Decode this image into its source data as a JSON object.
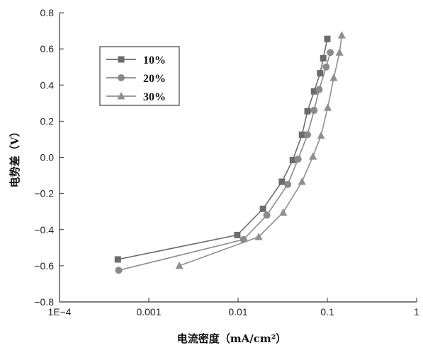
{
  "chart_data": {
    "type": "line",
    "xlabel": "电流密度（mA/cm²）",
    "ylabel": "电势差（V）",
    "x_scale": "log",
    "xlim": [
      0.0001,
      1
    ],
    "ylim": [
      -0.8,
      0.8
    ],
    "x_ticks": [
      {
        "value": 0.0001,
        "label": "1E−4"
      },
      {
        "value": 0.001,
        "label": "0.001"
      },
      {
        "value": 0.01,
        "label": "0.01"
      },
      {
        "value": 0.1,
        "label": "0.1"
      },
      {
        "value": 1,
        "label": "1"
      }
    ],
    "y_ticks": [
      {
        "value": 0.8,
        "label": "0.8"
      },
      {
        "value": 0.6,
        "label": "0.6"
      },
      {
        "value": 0.4,
        "label": "0.4"
      },
      {
        "value": 0.2,
        "label": "0.2"
      },
      {
        "value": 0.0,
        "label": "0.0"
      },
      {
        "value": -0.2,
        "label": "−0.2"
      },
      {
        "value": -0.4,
        "label": "−0.4"
      },
      {
        "value": -0.6,
        "label": "−0.6"
      },
      {
        "value": -0.8,
        "label": "−0.8"
      }
    ],
    "grid": false,
    "legend_position": "top-left",
    "series": [
      {
        "name": "10%",
        "marker": "square",
        "color": "#6b6b6b",
        "points": [
          [
            0.00045,
            -0.565
          ],
          [
            0.0098,
            -0.43
          ],
          [
            0.019,
            -0.285
          ],
          [
            0.031,
            -0.135
          ],
          [
            0.041,
            -0.015
          ],
          [
            0.052,
            0.125
          ],
          [
            0.06,
            0.255
          ],
          [
            0.071,
            0.365
          ],
          [
            0.083,
            0.465
          ],
          [
            0.09,
            0.548
          ],
          [
            0.1,
            0.655
          ]
        ]
      },
      {
        "name": "20%",
        "marker": "circle",
        "color": "#8a8a8a",
        "points": [
          [
            0.00046,
            -0.625
          ],
          [
            0.0115,
            -0.455
          ],
          [
            0.021,
            -0.32
          ],
          [
            0.036,
            -0.15
          ],
          [
            0.047,
            -0.01
          ],
          [
            0.06,
            0.125
          ],
          [
            0.071,
            0.26
          ],
          [
            0.081,
            0.375
          ],
          [
            0.097,
            0.5
          ],
          [
            0.108,
            0.58
          ]
        ]
      },
      {
        "name": "30%",
        "marker": "triangle",
        "color": "#8f8f8f",
        "points": [
          [
            0.0022,
            -0.6
          ],
          [
            0.017,
            -0.44
          ],
          [
            0.032,
            -0.305
          ],
          [
            0.052,
            -0.135
          ],
          [
            0.069,
            0.005
          ],
          [
            0.085,
            0.12
          ],
          [
            0.101,
            0.275
          ],
          [
            0.118,
            0.44
          ],
          [
            0.137,
            0.58
          ],
          [
            0.145,
            0.675
          ]
        ]
      }
    ]
  }
}
